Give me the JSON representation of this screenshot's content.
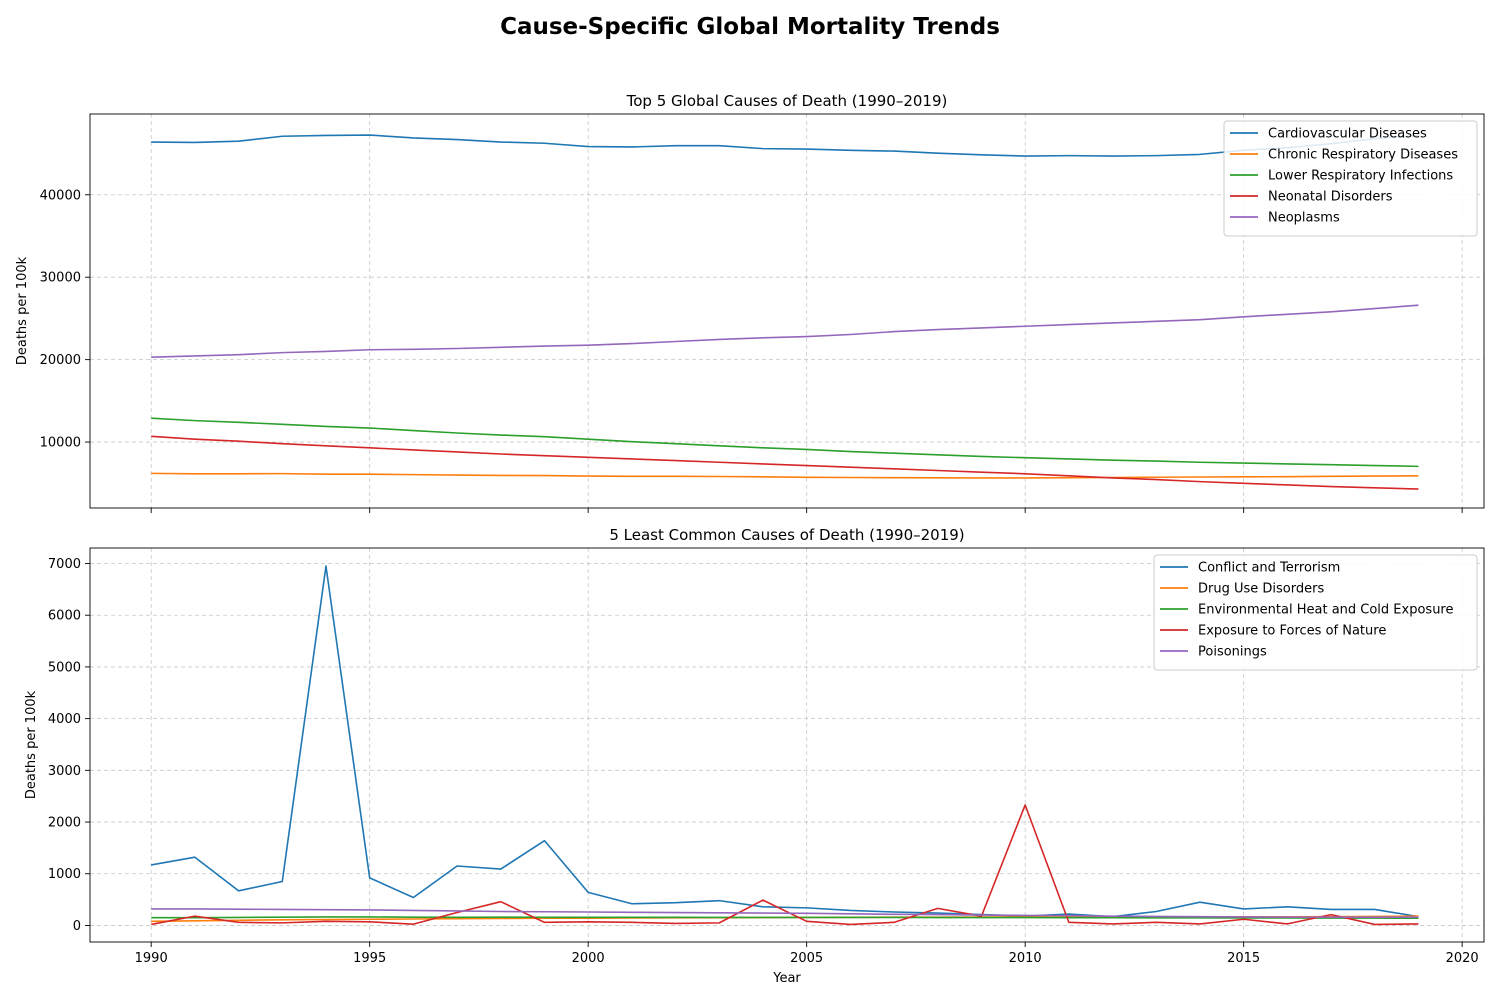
{
  "figure": {
    "title": "Cause-Specific Global Mortality Trends"
  },
  "chart_data": [
    {
      "type": "line",
      "title": "Top 5 Global Causes of Death (1990–2019)",
      "xlabel": "",
      "ylabel": "Deaths per 100k",
      "xlim": [
        1988.6,
        1990.0
      ],
      "ylim": [
        2000,
        49800
      ],
      "xticks": [
        1990,
        1995,
        2000,
        2005,
        2010,
        2015,
        2020
      ],
      "yticks": [
        10000,
        20000,
        30000,
        40000
      ],
      "grid": true,
      "legend_position": "top-right",
      "x": [
        1990,
        1991,
        1992,
        1993,
        1994,
        1995,
        1996,
        1997,
        1998,
        1999,
        2000,
        2001,
        2002,
        2003,
        2004,
        2005,
        2006,
        2007,
        2008,
        2009,
        2010,
        2011,
        2012,
        2013,
        2014,
        2015,
        2016,
        2017,
        2018,
        2019
      ],
      "series": [
        {
          "name": "Cardiovascular Diseases",
          "color": "#1f77b4",
          "values": [
            46400,
            46350,
            46500,
            47100,
            47200,
            47250,
            46900,
            46700,
            46400,
            46250,
            45850,
            45800,
            45950,
            45950,
            45600,
            45550,
            45400,
            45300,
            45050,
            44850,
            44700,
            44750,
            44700,
            44750,
            44900,
            45400,
            45700,
            46200,
            46800,
            47200
          ]
        },
        {
          "name": "Chronic Respiratory Diseases",
          "color": "#ff7f0e",
          "values": [
            6200,
            6150,
            6150,
            6170,
            6100,
            6100,
            6050,
            6000,
            5950,
            5930,
            5880,
            5850,
            5840,
            5820,
            5780,
            5720,
            5700,
            5680,
            5660,
            5650,
            5650,
            5680,
            5700,
            5730,
            5760,
            5780,
            5800,
            5850,
            5880,
            5900
          ]
        },
        {
          "name": "Lower Respiratory Infections",
          "color": "#2ca02c",
          "values": [
            12900,
            12600,
            12400,
            12150,
            11900,
            11700,
            11400,
            11100,
            10850,
            10650,
            10350,
            10050,
            9800,
            9550,
            9300,
            9100,
            8850,
            8650,
            8450,
            8250,
            8100,
            7950,
            7800,
            7700,
            7550,
            7450,
            7350,
            7250,
            7150,
            7050
          ]
        },
        {
          "name": "Neonatal Disorders",
          "color": "#d62728",
          "values": [
            10700,
            10350,
            10100,
            9800,
            9550,
            9300,
            9050,
            8800,
            8550,
            8350,
            8150,
            7950,
            7750,
            7550,
            7350,
            7150,
            6950,
            6750,
            6550,
            6350,
            6150,
            5900,
            5650,
            5450,
            5200,
            5000,
            4800,
            4600,
            4450,
            4300
          ]
        },
        {
          "name": "Neoplasms",
          "color": "#9467bd",
          "values": [
            20300,
            20450,
            20600,
            20850,
            21000,
            21200,
            21250,
            21350,
            21500,
            21650,
            21750,
            21950,
            22200,
            22450,
            22650,
            22800,
            23050,
            23400,
            23650,
            23850,
            24050,
            24250,
            24450,
            24650,
            24850,
            25200,
            25500,
            25800,
            26200,
            26600
          ]
        }
      ]
    },
    {
      "type": "line",
      "title": "5 Least Common Causes of Death (1990–2019)",
      "xlabel": "Year",
      "ylabel": "Deaths per 100k",
      "xlim": [
        1988.6,
        2020.5
      ],
      "ylim": [
        -320,
        7300
      ],
      "xticks": [
        1990,
        1995,
        2000,
        2005,
        2010,
        2015,
        2020
      ],
      "yticks": [
        0,
        1000,
        2000,
        3000,
        4000,
        5000,
        6000,
        7000
      ],
      "grid": true,
      "legend_position": "top-right",
      "x": [
        1990,
        1991,
        1992,
        1993,
        1994,
        1995,
        1996,
        1997,
        1998,
        1999,
        2000,
        2001,
        2002,
        2003,
        2004,
        2005,
        2006,
        2007,
        2008,
        2009,
        2010,
        2011,
        2012,
        2013,
        2014,
        2015,
        2016,
        2017,
        2018,
        2019
      ],
      "series": [
        {
          "name": "Conflict and Terrorism",
          "color": "#1f77b4",
          "values": [
            1170,
            1320,
            670,
            850,
            6950,
            920,
            540,
            1150,
            1090,
            1640,
            640,
            420,
            440,
            480,
            360,
            340,
            290,
            260,
            240,
            210,
            180,
            220,
            170,
            270,
            450,
            320,
            360,
            310,
            310,
            170
          ]
        },
        {
          "name": "Drug Use Disorders",
          "color": "#ff7f0e",
          "values": [
            80,
            90,
            100,
            110,
            115,
            120,
            125,
            130,
            135,
            140,
            140,
            145,
            148,
            150,
            152,
            155,
            158,
            160,
            160,
            162,
            165,
            165,
            165,
            165,
            165,
            168,
            168,
            170,
            175,
            180
          ]
        },
        {
          "name": "Environmental Heat and Cold Exposure",
          "color": "#2ca02c",
          "values": [
            150,
            150,
            155,
            160,
            165,
            165,
            160,
            158,
            160,
            158,
            158,
            158,
            157,
            156,
            156,
            155,
            155,
            155,
            153,
            152,
            152,
            150,
            150,
            148,
            148,
            146,
            145,
            143,
            142,
            140
          ]
        },
        {
          "name": "Exposure to Forces of Nature",
          "color": "#d62728",
          "values": [
            20,
            180,
            60,
            50,
            80,
            70,
            25,
            250,
            460,
            60,
            70,
            60,
            40,
            50,
            490,
            80,
            20,
            60,
            330,
            180,
            2330,
            60,
            30,
            60,
            30,
            120,
            30,
            210,
            20,
            30
          ]
        },
        {
          "name": "Poisonings",
          "color": "#9467bd",
          "values": [
            320,
            320,
            315,
            310,
            305,
            300,
            290,
            280,
            270,
            265,
            260,
            255,
            250,
            245,
            240,
            235,
            225,
            215,
            210,
            200,
            195,
            190,
            180,
            175,
            170,
            165,
            160,
            160,
            160,
            160
          ]
        }
      ]
    }
  ]
}
